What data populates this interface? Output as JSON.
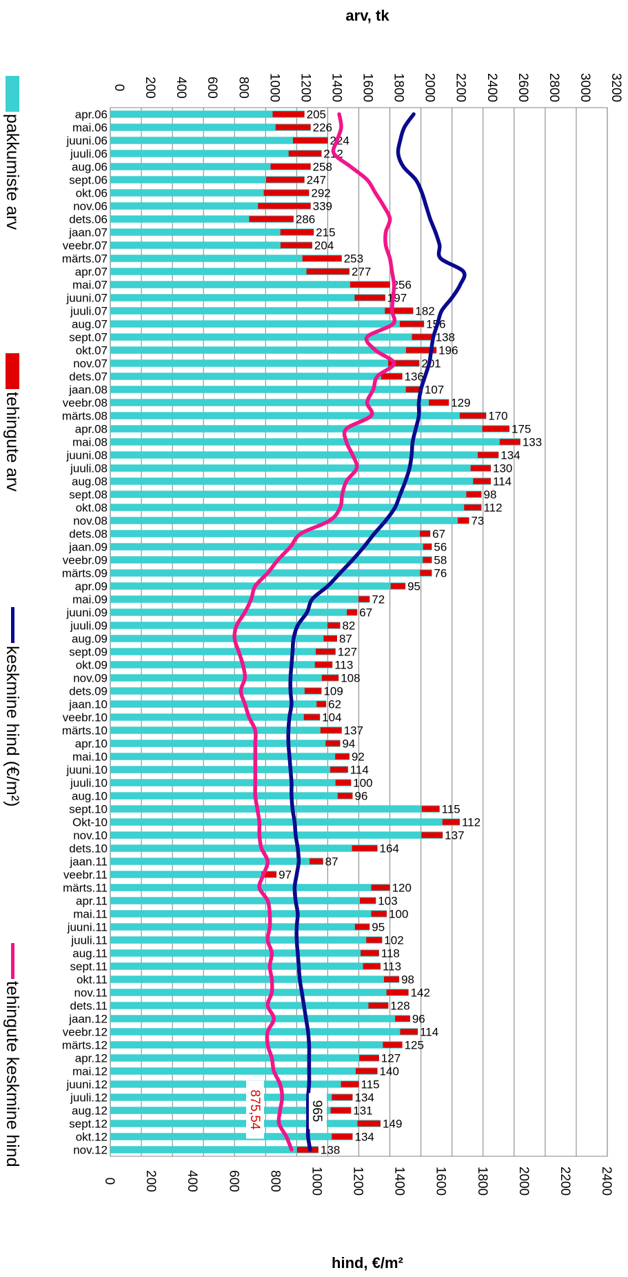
{
  "chart_data": {
    "type": "bar",
    "orientation": "rotated-90-clockwise",
    "top_axis_title": "arv, tk",
    "bottom_axis_title": "hind, €/m²",
    "top_axis_range": [
      0,
      3200
    ],
    "top_axis_ticks": [
      "0",
      "200",
      "400",
      "600",
      "800",
      "1000",
      "1200",
      "1400",
      "1600",
      "1800",
      "2000",
      "2200",
      "2400",
      "2600",
      "2800",
      "3000",
      "3200"
    ],
    "bottom_axis_range": [
      0,
      2400
    ],
    "bottom_axis_ticks": [
      "0",
      "200",
      "400",
      "600",
      "800",
      "1000",
      "1200",
      "1400",
      "1600",
      "1800",
      "2000",
      "2200",
      "2400"
    ],
    "grid": true,
    "legend_position": "left",
    "legend": [
      {
        "label": "pakkumiste arv",
        "color": "#3cd0d0",
        "kind": "bar"
      },
      {
        "label": "tehingute arv",
        "color": "#e00000",
        "kind": "bar"
      },
      {
        "label": "keskmine hind (€/m²)",
        "color": "#0a0a8c",
        "kind": "line"
      },
      {
        "label": "tehingute keskmine hind",
        "color": "#f0168a",
        "kind": "line"
      }
    ],
    "annotations": [
      {
        "text": "875,54",
        "color": "#e00000"
      },
      {
        "text": "965",
        "color": "#000000"
      }
    ],
    "categories": [
      "apr.06",
      "mai.06",
      "juuni.06",
      "juuli.06",
      "aug.06",
      "sept.06",
      "okt.06",
      "nov.06",
      "dets.06",
      "jaan.07",
      "veebr.07",
      "märts.07",
      "apr.07",
      "mai.07",
      "juuni.07",
      "juuli.07",
      "aug.07",
      "sept.07",
      "okt.07",
      "nov.07",
      "dets.07",
      "jaan.08",
      "veebr.08",
      "märts.08",
      "apr.08",
      "mai.08",
      "juuni.08",
      "juuli.08",
      "aug.08",
      "sept.08",
      "okt.08",
      "nov.08",
      "dets.08",
      "jaan.09",
      "veebr.09",
      "märts.09",
      "apr.09",
      "mai.09",
      "juuni.09",
      "juuli.09",
      "aug.09",
      "sept.09",
      "okt.09",
      "nov.09",
      "dets.09",
      "jaan.10",
      "veebr.10",
      "märts.10",
      "apr.10",
      "mai.10",
      "juuni.10",
      "juuli.10",
      "aug.10",
      "sept.10",
      "Okt-10",
      "nov.10",
      "dets.10",
      "jaan.11",
      "veebr.11",
      "märts.11",
      "apr.11",
      "mai.11",
      "juuni.11",
      "juuli.11",
      "aug.11",
      "sept.11",
      "okt.11",
      "nov.11",
      "dets.11",
      "jaan.12",
      "veebr.12",
      "märts.12",
      "apr.12",
      "mai.12",
      "juuni.12",
      "juuli.12",
      "aug.12",
      "sept.12",
      "okt.12",
      "nov.12"
    ],
    "series": [
      {
        "name": "pakkumiste arv",
        "type": "bar",
        "axis": "top",
        "values": [
          1250,
          1290,
          1400,
          1360,
          1290,
          1250,
          1280,
          1290,
          1180,
          1310,
          1300,
          1490,
          1540,
          1800,
          1770,
          1950,
          2020,
          2080,
          2100,
          1990,
          1880,
          2010,
          2180,
          2420,
          2570,
          2640,
          2500,
          2450,
          2450,
          2390,
          2390,
          2310,
          2060,
          2070,
          2070,
          2070,
          1900,
          1670,
          1590,
          1480,
          1460,
          1450,
          1430,
          1470,
          1360,
          1390,
          1350,
          1490,
          1480,
          1540,
          1530,
          1550,
          1560,
          2120,
          2250,
          2140,
          1720,
          1370,
          1070,
          1800,
          1710,
          1780,
          1670,
          1750,
          1730,
          1740,
          1860,
          1920,
          1790,
          1930,
          1980,
          1880,
          1730,
          1720,
          1600,
          1560,
          1550,
          1740,
          1560,
          1340
        ]
      },
      {
        "name": "tehingute arv",
        "type": "bar",
        "axis": "top",
        "values": [
          205,
          226,
          224,
          212,
          258,
          247,
          292,
          339,
          286,
          215,
          204,
          253,
          277,
          256,
          197,
          182,
          156,
          138,
          196,
          201,
          136,
          107,
          129,
          170,
          175,
          133,
          134,
          130,
          114,
          98,
          112,
          73,
          67,
          56,
          58,
          76,
          95,
          72,
          67,
          82,
          87,
          127,
          113,
          108,
          109,
          62,
          104,
          137,
          94,
          92,
          114,
          100,
          96,
          115,
          112,
          137,
          164,
          87,
          97,
          120,
          103,
          100,
          95,
          102,
          118,
          113,
          98,
          142,
          128,
          96,
          114,
          125,
          127,
          140,
          115,
          134,
          131,
          149,
          134,
          138
        ],
        "data_labels": [
          "205",
          "226",
          "224",
          "212",
          "258",
          "247",
          "292",
          "339",
          "286",
          "215",
          "204",
          "253",
          "277",
          "256",
          "197",
          "182",
          "156",
          "138",
          "196",
          "201",
          "136",
          "107",
          "129",
          "170",
          "175",
          "133",
          "134",
          "130",
          "114",
          "98",
          "112",
          "73",
          "67",
          "56",
          "58",
          "76",
          "95",
          "72",
          "67",
          "82",
          "87",
          "127",
          "113",
          "108",
          "109",
          "62",
          "104",
          "137",
          "94",
          "92",
          "114",
          "100",
          "96",
          "115",
          "112",
          "137",
          "164",
          "87",
          "97",
          "120",
          "103",
          "100",
          "95",
          "102",
          "118",
          "113",
          "98",
          "142",
          "128",
          "96",
          "114",
          "125",
          "127",
          "140",
          "115",
          "134",
          "131",
          "149",
          "134",
          "138"
        ]
      },
      {
        "name": "keskmine hind (€/m²)",
        "type": "line",
        "axis": "bottom",
        "values": [
          1465,
          1420,
          1400,
          1390,
          1415,
          1475,
          1505,
          1525,
          1545,
          1570,
          1590,
          1595,
          1705,
          1690,
          1650,
          1600,
          1580,
          1560,
          1550,
          1540,
          1520,
          1500,
          1490,
          1490,
          1475,
          1460,
          1455,
          1445,
          1425,
          1400,
          1375,
          1330,
          1275,
          1225,
          1170,
          1110,
          1050,
          975,
          950,
          905,
          885,
          880,
          875,
          870,
          870,
          875,
          865,
          860,
          860,
          865,
          870,
          875,
          875,
          880,
          890,
          895,
          905,
          910,
          900,
          890,
          895,
          905,
          900,
          900,
          905,
          910,
          915,
          925,
          935,
          945,
          955,
          960,
          960,
          960,
          960,
          955,
          955,
          955,
          955,
          965
        ]
      },
      {
        "name": "tehingute keskmine hind",
        "type": "line",
        "axis": "bottom",
        "values": [
          1105,
          1115,
          1095,
          1080,
          1160,
          1240,
          1280,
          1320,
          1350,
          1330,
          1330,
          1350,
          1360,
          1370,
          1365,
          1360,
          1365,
          1240,
          1280,
          1370,
          1290,
          1270,
          1240,
          1260,
          1140,
          1140,
          1170,
          1190,
          1140,
          1120,
          1110,
          1060,
          920,
          870,
          810,
          760,
          700,
          680,
          650,
          610,
          600,
          620,
          640,
          650,
          630,
          650,
          670,
          700,
          700,
          700,
          700,
          700,
          700,
          710,
          720,
          720,
          730,
          760,
          740,
          720,
          760,
          770,
          770,
          760,
          780,
          770,
          780,
          780,
          760,
          790,
          760,
          760,
          780,
          790,
          820,
          830,
          820,
          815,
          850,
          875
        ]
      }
    ]
  }
}
